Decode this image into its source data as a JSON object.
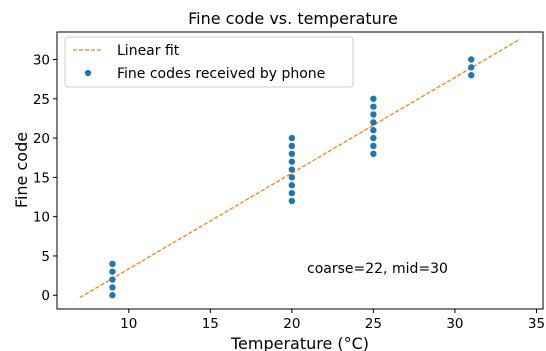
{
  "chart_data": {
    "type": "scatter",
    "title": "Fine code vs. temperature",
    "xlabel": "Temperature (°C)",
    "ylabel": "Fine code",
    "xlim": [
      5.6,
      35.4
    ],
    "ylim": [
      -1.75,
      33.5
    ],
    "xticks": [
      10,
      15,
      20,
      25,
      30,
      35
    ],
    "yticks": [
      0,
      5,
      10,
      15,
      20,
      25,
      30
    ],
    "grid": false,
    "legend_position": "top-left",
    "annotation": "coarse=22, mid=30",
    "series": [
      {
        "name": "Linear fit",
        "type": "line",
        "style": "dashed",
        "color": "#ff7f0e",
        "x": [
          7,
          34
        ],
        "y": [
          -0.3,
          32.6
        ]
      },
      {
        "name": "Fine codes received by phone",
        "type": "scatter",
        "color": "#1f77b4",
        "x": [
          9,
          9,
          9,
          9,
          9,
          20,
          20,
          20,
          20,
          20,
          20,
          20,
          20,
          20,
          25,
          25,
          25,
          25,
          25,
          25,
          25,
          25,
          31,
          31,
          31
        ],
        "y": [
          0,
          1,
          2,
          3,
          4,
          12,
          13,
          14,
          15,
          16,
          17,
          18,
          19,
          20,
          18,
          19,
          20,
          21,
          22,
          23,
          24,
          25,
          28,
          29,
          30
        ]
      }
    ]
  }
}
